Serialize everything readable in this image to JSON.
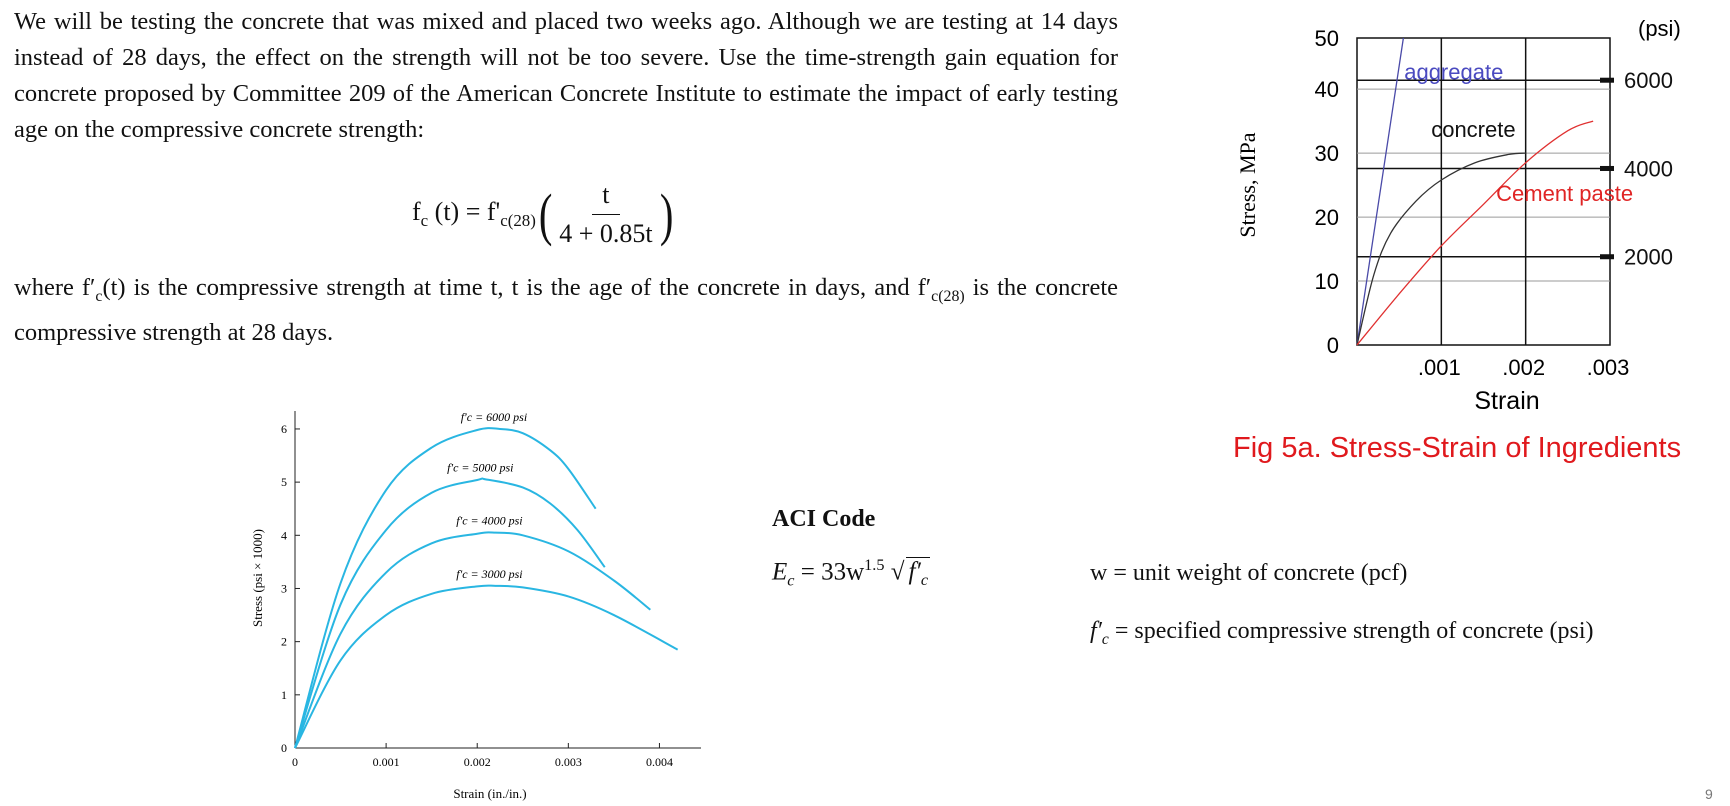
{
  "text": {
    "paragraph1": "We will be testing the concrete that was mixed and placed two weeks ago.  Although we are testing at 14 days instead of 28 days, the effect on the strength will not be too severe. Use the time-strength gain equation for concrete proposed by Committee 209 of the American Concrete Institute to estimate the impact of early testing age on the compressive concrete strength:",
    "p2_where": "where ",
    "p2_mid": " is the compressive strength at time t, t is the age of the concrete in days, and ",
    "p2_end": " is the concrete compressive strength at 28 days."
  },
  "equation": {
    "lhs_f": "f",
    "lhs_sub": "c",
    "lhs_arg": " (t) = f",
    "rhs_prime": "'",
    "rhs_sub": "c(28)",
    "numerator": "t",
    "denominator": "4 + 0.85t"
  },
  "aci": {
    "heading": "ACI Code",
    "eq_lhs": "E",
    "eq_sub": "c",
    "eq_mid": " = 33w",
    "eq_exp": "1.5",
    "eq_sqrt": "f′",
    "eq_sqrt_sub": "c"
  },
  "definitions": {
    "w": "w = unit weight of concrete (pcf)",
    "fc_sym": "f′",
    "fc_sub": "c",
    "fc_text": " = specified compressive strength of concrete (psi)"
  },
  "figure_caption": "Fig 5a. Stress-Strain of Ingredients",
  "page_number": "9",
  "chart_data": [
    {
      "type": "line",
      "title": "",
      "xlabel": "Strain (in./in.)",
      "ylabel": "Stress (psi × 1000)",
      "xlim": [
        0,
        0.0045
      ],
      "ylim": [
        0,
        6.3
      ],
      "x_ticks": [
        "0",
        "0.001",
        "0.002",
        "0.003",
        "0.004"
      ],
      "y_ticks": [
        "0",
        "1",
        "2",
        "3",
        "4",
        "5",
        "6"
      ],
      "line_color": "#29b6e2",
      "series": [
        {
          "name": "f′c = 6000 psi",
          "peak_strain": 0.00225,
          "peak_stress": 6.0,
          "end": [
            0.0033,
            4.5
          ],
          "points": [
            [
              0,
              0
            ],
            [
              0.0005,
              3.1
            ],
            [
              0.001,
              4.85
            ],
            [
              0.0015,
              5.65
            ],
            [
              0.002,
              5.98
            ],
            [
              0.00225,
              6.0
            ],
            [
              0.0025,
              5.92
            ],
            [
              0.0028,
              5.6
            ],
            [
              0.003,
              5.25
            ],
            [
              0.0033,
              4.5
            ]
          ]
        },
        {
          "name": "f′c = 5000 psi",
          "peak_strain": 0.0021,
          "peak_stress": 5.05,
          "end": [
            0.0034,
            3.4
          ],
          "points": [
            [
              0,
              0
            ],
            [
              0.0005,
              2.7
            ],
            [
              0.001,
              4.1
            ],
            [
              0.0015,
              4.8
            ],
            [
              0.002,
              5.04
            ],
            [
              0.0021,
              5.05
            ],
            [
              0.0025,
              4.9
            ],
            [
              0.0028,
              4.6
            ],
            [
              0.0031,
              4.1
            ],
            [
              0.0034,
              3.4
            ]
          ]
        },
        {
          "name": "f′c = 4000 psi",
          "peak_strain": 0.0022,
          "peak_stress": 4.05,
          "end": [
            0.0039,
            2.6
          ],
          "points": [
            [
              0,
              0
            ],
            [
              0.0005,
              2.15
            ],
            [
              0.001,
              3.3
            ],
            [
              0.0015,
              3.85
            ],
            [
              0.002,
              4.03
            ],
            [
              0.0022,
              4.05
            ],
            [
              0.0025,
              4.0
            ],
            [
              0.003,
              3.7
            ],
            [
              0.0035,
              3.15
            ],
            [
              0.0039,
              2.6
            ]
          ]
        },
        {
          "name": "f′c = 3000 psi",
          "peak_strain": 0.0022,
          "peak_stress": 3.05,
          "end": [
            0.0042,
            1.85
          ],
          "points": [
            [
              0,
              0
            ],
            [
              0.0005,
              1.65
            ],
            [
              0.001,
              2.5
            ],
            [
              0.0015,
              2.9
            ],
            [
              0.002,
              3.04
            ],
            [
              0.0022,
              3.05
            ],
            [
              0.0025,
              3.02
            ],
            [
              0.003,
              2.85
            ],
            [
              0.0035,
              2.5
            ],
            [
              0.0042,
              1.85
            ]
          ]
        }
      ]
    },
    {
      "type": "line",
      "title": "",
      "xlabel": "Strain",
      "ylabel": "Stress, MPa",
      "y2label": "(psi)",
      "xlim": [
        0,
        0.003
      ],
      "ylim": [
        0,
        48
      ],
      "x_ticks": [
        ".001",
        ".002",
        ".003"
      ],
      "y_ticks": [
        "0",
        "10",
        "20",
        "30",
        "40",
        "50"
      ],
      "y2_ticks": [
        "2000",
        "4000",
        "6000"
      ],
      "y2_tick_values_mpa": [
        13.8,
        27.6,
        41.4
      ],
      "grid": true,
      "series": [
        {
          "name": "aggregate",
          "color": "#4a4aa8",
          "points": [
            [
              0,
              0
            ],
            [
              0.00055,
              48
            ]
          ]
        },
        {
          "name": "concrete",
          "color": "#333333",
          "points": [
            [
              0,
              0
            ],
            [
              0.0002,
              11
            ],
            [
              0.0004,
              17.5
            ],
            [
              0.0007,
              22.5
            ],
            [
              0.001,
              25.8
            ],
            [
              0.0014,
              28.5
            ],
            [
              0.0018,
              29.8
            ],
            [
              0.002,
              30
            ]
          ]
        },
        {
          "name": "Cement paste",
          "color": "#e03030",
          "points": [
            [
              0,
              0
            ],
            [
              0.0005,
              8
            ],
            [
              0.001,
              15.5
            ],
            [
              0.0015,
              22
            ],
            [
              0.002,
              28.5
            ],
            [
              0.0025,
              33.5
            ],
            [
              0.0028,
              35
            ]
          ]
        }
      ]
    }
  ]
}
